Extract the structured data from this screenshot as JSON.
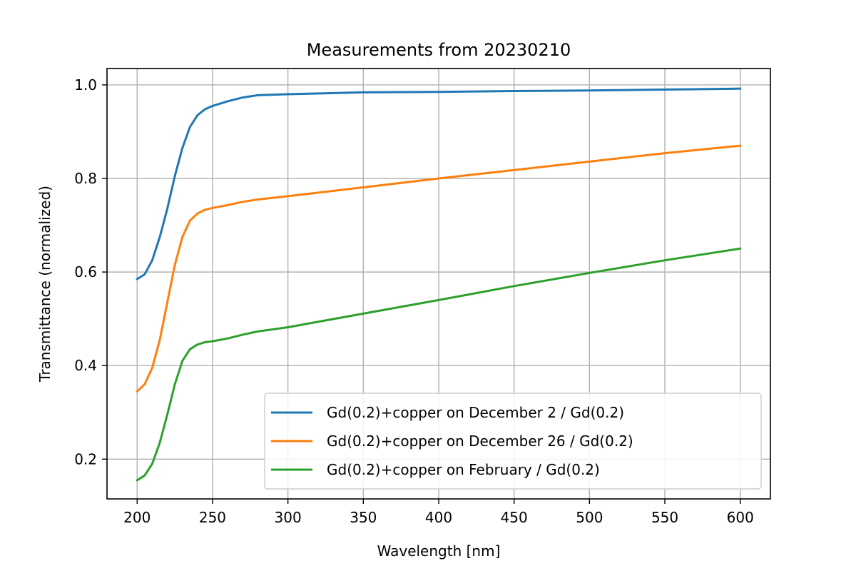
{
  "chart_data": {
    "type": "line",
    "title": "Measurements from 20230210",
    "xlabel": "Wavelength [nm]",
    "ylabel": "Transmittance (normalized)",
    "xlim": [
      180,
      620
    ],
    "ylim": [
      0.115,
      1.035
    ],
    "xticks": [
      200,
      250,
      300,
      350,
      400,
      450,
      500,
      550,
      600
    ],
    "yticks": [
      0.2,
      0.4,
      0.6,
      0.8,
      1.0
    ],
    "xtick_labels": [
      "200",
      "250",
      "300",
      "350",
      "400",
      "450",
      "500",
      "550",
      "600"
    ],
    "ytick_labels": [
      "0.2",
      "0.4",
      "0.6",
      "0.8",
      "1.0"
    ],
    "grid": true,
    "legend_position": "lower-right",
    "series": [
      {
        "name": "Gd(0.2)+copper on December 2 / Gd(0.2)",
        "color": "#1f77b4",
        "x": [
          200,
          205,
          210,
          215,
          220,
          225,
          230,
          235,
          240,
          245,
          250,
          260,
          270,
          280,
          300,
          350,
          400,
          450,
          500,
          550,
          600
        ],
        "y": [
          0.585,
          0.595,
          0.625,
          0.675,
          0.735,
          0.805,
          0.865,
          0.91,
          0.935,
          0.948,
          0.955,
          0.965,
          0.973,
          0.978,
          0.98,
          0.984,
          0.985,
          0.987,
          0.988,
          0.99,
          0.992
        ]
      },
      {
        "name": "Gd(0.2)+copper on December 26 / Gd(0.2)",
        "color": "#ff7f0e",
        "x": [
          200,
          205,
          210,
          215,
          220,
          225,
          230,
          235,
          240,
          245,
          250,
          260,
          270,
          280,
          300,
          350,
          400,
          450,
          500,
          550,
          600
        ],
        "y": [
          0.345,
          0.36,
          0.395,
          0.455,
          0.535,
          0.615,
          0.675,
          0.71,
          0.725,
          0.733,
          0.737,
          0.743,
          0.75,
          0.755,
          0.762,
          0.781,
          0.8,
          0.818,
          0.836,
          0.854,
          0.87
        ]
      },
      {
        "name": "Gd(0.2)+copper on February / Gd(0.2)",
        "color": "#2ca02c",
        "x": [
          200,
          205,
          210,
          215,
          220,
          225,
          230,
          235,
          240,
          245,
          250,
          260,
          270,
          280,
          300,
          350,
          400,
          450,
          500,
          550,
          600
        ],
        "y": [
          0.155,
          0.165,
          0.19,
          0.235,
          0.295,
          0.36,
          0.41,
          0.435,
          0.445,
          0.45,
          0.452,
          0.458,
          0.466,
          0.473,
          0.482,
          0.511,
          0.54,
          0.57,
          0.598,
          0.625,
          0.65
        ]
      }
    ]
  }
}
